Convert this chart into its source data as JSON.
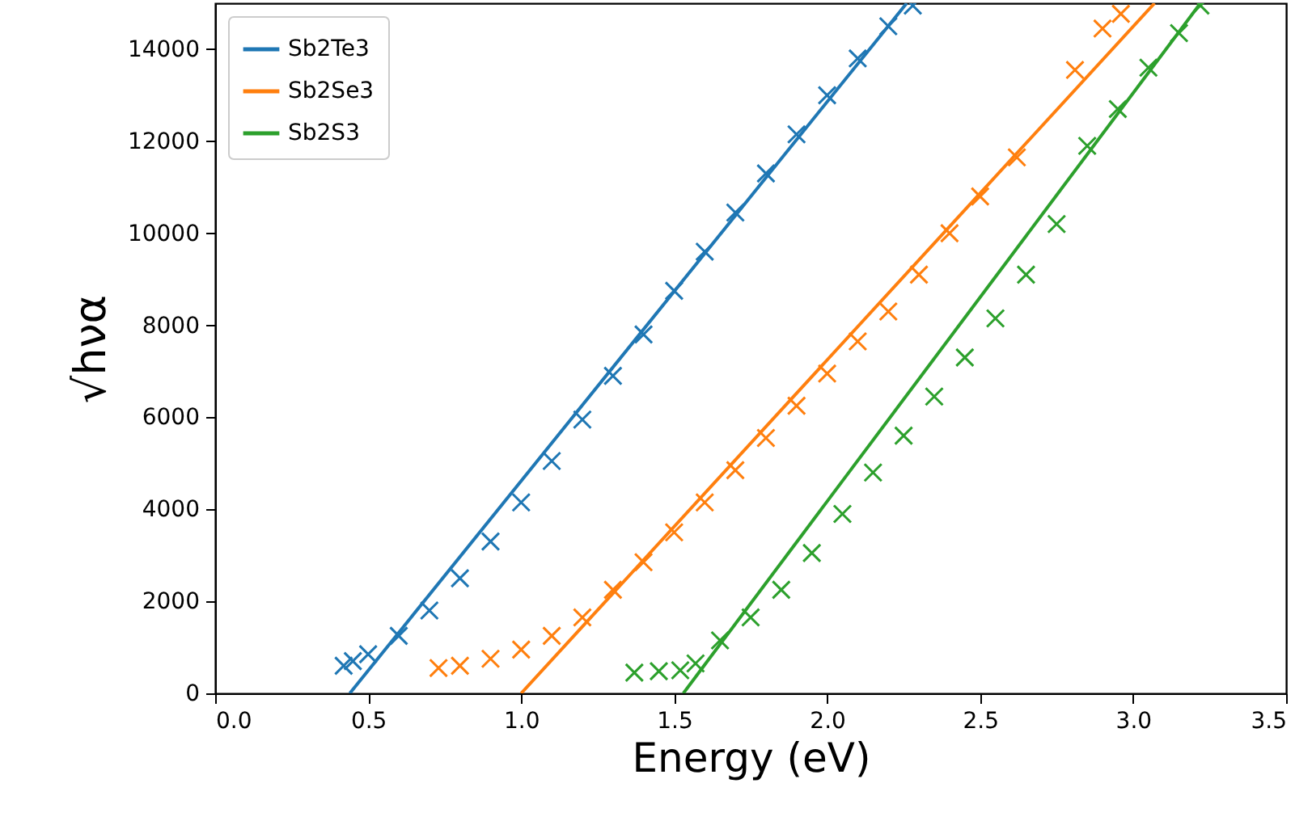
{
  "chart_data": {
    "type": "scatter",
    "xlabel": "Energy (eV)",
    "ylabel": "√hνα",
    "xlim": [
      0,
      3.5
    ],
    "ylim": [
      0,
      15000
    ],
    "xticks": [
      {
        "value": 0,
        "label": "0.0"
      },
      {
        "value": 0.5,
        "label": "0.5"
      },
      {
        "value": 1,
        "label": "1.0"
      },
      {
        "value": 1.5,
        "label": "1.5"
      },
      {
        "value": 2,
        "label": "2.0"
      },
      {
        "value": 2.5,
        "label": "2.5"
      },
      {
        "value": 3,
        "label": "3.0"
      },
      {
        "value": 3.5,
        "label": "3.5"
      }
    ],
    "yticks": [
      0,
      2000,
      4000,
      6000,
      8000,
      10000,
      12000,
      14000
    ],
    "grid": false,
    "legend": "top left",
    "series": [
      {
        "marker": "cross",
        "color": "#1f77b4",
        "x": [
          0.42,
          0.45,
          0.5,
          0.6,
          0.7,
          0.8,
          0.9,
          1.0,
          1.1,
          1.2,
          1.3,
          1.4,
          1.5,
          1.6,
          1.7,
          1.8,
          1.9,
          2.0,
          2.1,
          2.2,
          2.28
        ],
        "values": [
          600,
          700,
          850,
          1250,
          1800,
          2500,
          3300,
          4150,
          5050,
          5950,
          6900,
          7800,
          8750,
          9600,
          10450,
          11300,
          12150,
          13000,
          13800,
          14500,
          14950
        ]
      },
      {
        "marker": "cross",
        "color": "#ff7f0e",
        "x": [
          0.73,
          0.8,
          0.9,
          1.0,
          1.1,
          1.2,
          1.3,
          1.4,
          1.5,
          1.6,
          1.7,
          1.8,
          1.9,
          2.0,
          2.1,
          2.2,
          2.3,
          2.4,
          2.5,
          2.62,
          2.81,
          2.9,
          2.96
        ],
        "values": [
          550,
          600,
          750,
          950,
          1250,
          1650,
          2250,
          2850,
          3500,
          4150,
          4850,
          5550,
          6250,
          6950,
          7650,
          8300,
          9100,
          10000,
          10800,
          11650,
          13550,
          14450,
          14770
        ]
      },
      {
        "marker": "cross",
        "color": "#2ca02c",
        "x": [
          1.37,
          1.45,
          1.52,
          1.57,
          1.65,
          1.75,
          1.85,
          1.95,
          2.05,
          2.15,
          2.25,
          2.35,
          2.45,
          2.55,
          2.65,
          2.75,
          2.85,
          2.95,
          3.05,
          3.15,
          3.22
        ],
        "values": [
          450,
          480,
          500,
          650,
          1150,
          1650,
          2250,
          3050,
          3900,
          4800,
          5600,
          6450,
          7300,
          8150,
          9100,
          10200,
          11900,
          12700,
          13600,
          14350,
          14950
        ]
      },
      {
        "type": "line",
        "name": "Sb2Te3",
        "color": "#1f77b4",
        "x": [
          0.44,
          2.26
        ],
        "values": [
          0,
          15000
        ]
      },
      {
        "type": "line",
        "name": "Sb2Se3",
        "color": "#ff7f0e",
        "x": [
          1.0,
          3.07
        ],
        "values": [
          0,
          15000
        ]
      },
      {
        "type": "line",
        "name": "Sb2S3",
        "color": "#2ca02c",
        "x": [
          1.53,
          3.22
        ],
        "values": [
          0,
          15000
        ]
      }
    ]
  }
}
